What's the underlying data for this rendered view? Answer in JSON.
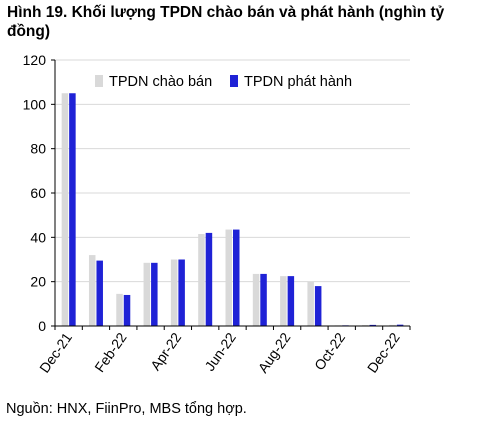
{
  "title": "Hình 19. Khối lượng TPDN chào bán và phát hành (nghìn tỷ đồng)",
  "source": "Nguồn: HNX, FiinPro, MBS tổng hợp.",
  "colors": {
    "offered": "#d9d9d9",
    "issued": "#1f22d6",
    "grid": "#d9d9d9",
    "axis": "#000000"
  },
  "chart_data": {
    "type": "bar",
    "title": "Hình 19. Khối lượng TPDN chào bán và phát hành (nghìn tỷ đồng)",
    "xlabel": "",
    "ylabel": "",
    "ylim": [
      0,
      120
    ],
    "yticks": [
      0,
      20,
      40,
      60,
      80,
      100,
      120
    ],
    "grid": true,
    "legend": "top-right",
    "categories": [
      "Dec-21",
      "Jan-22",
      "Feb-22",
      "Mar-22",
      "Apr-22",
      "May-22",
      "Jun-22",
      "Jul-22",
      "Aug-22",
      "Sep-22",
      "Oct-22",
      "Nov-22",
      "Dec-22"
    ],
    "xtick_labels": [
      "Dec-21",
      "Feb-22",
      "Apr-22",
      "Jun-22",
      "Aug-22",
      "Oct-22",
      "Dec-22"
    ],
    "series": [
      {
        "name": "TPDN chào bán",
        "values": [
          105,
          32,
          14.5,
          28.5,
          30,
          41.5,
          43.5,
          23.5,
          22.5,
          20,
          0.3,
          0.4,
          0.5
        ]
      },
      {
        "name": "TPDN phát hành",
        "values": [
          105,
          29.5,
          14,
          28.5,
          30,
          42,
          43.5,
          23.5,
          22.5,
          18,
          0.3,
          0.5,
          0.6
        ]
      }
    ]
  }
}
